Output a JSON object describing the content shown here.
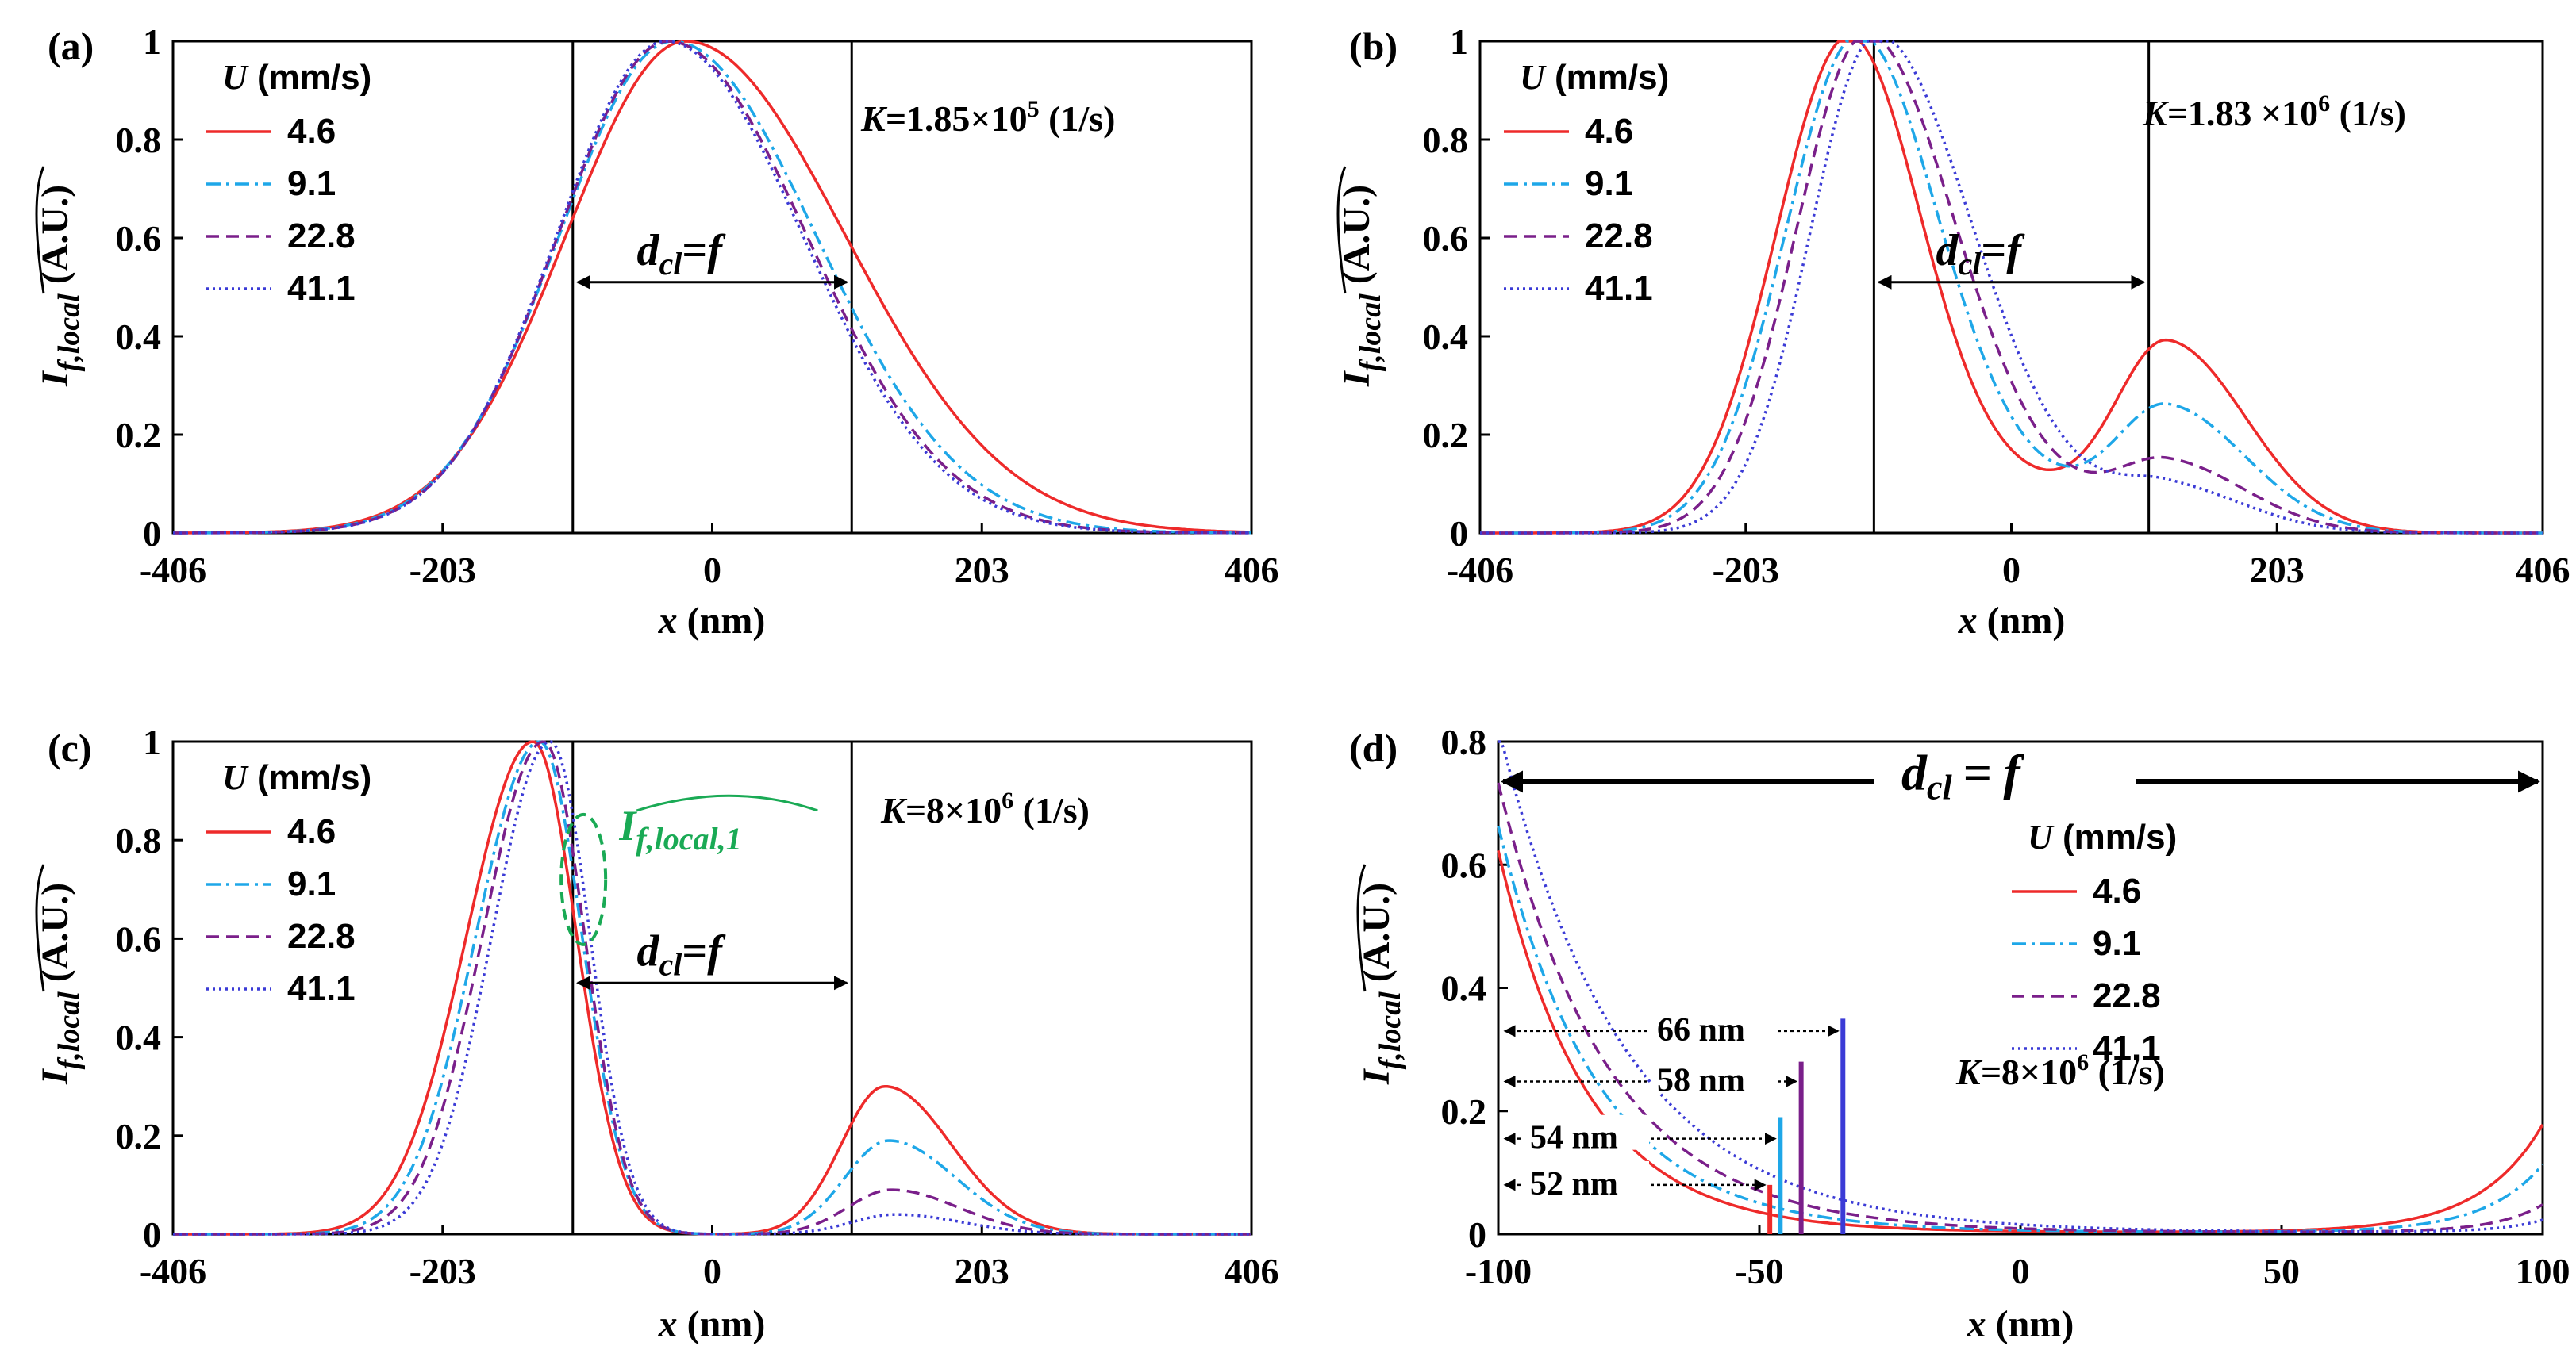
{
  "figure": {
    "legend_title": "U",
    "legend_unit": "(mm/s)",
    "ylabel_base": "I",
    "ylabel_sub": "f,local",
    "ylabel_unit": "(A.U.)",
    "xlabel_var": "x",
    "xlabel_unit": "(nm)",
    "dim_label_d": "d",
    "dim_label_cl": "cl",
    "dim_label_eq": "=",
    "dim_label_f": "f",
    "k_label_prefix": "K="
  },
  "series_styles": [
    {
      "name": "4.6",
      "color": "#ee2a2a",
      "dash": ""
    },
    {
      "name": "9.1",
      "color": "#1ea7e8",
      "dash": "dashdot"
    },
    {
      "name": "22.8",
      "color": "#7a1f8a",
      "dash": "dash"
    },
    {
      "name": "41.1",
      "color": "#3b3bd6",
      "dash": "dot"
    }
  ],
  "chart_data": [
    {
      "panel": "(a)",
      "type": "line",
      "k_value": "1.85×10",
      "k_exp": "5",
      "k_unit": "(1/s)",
      "xlim": [
        -406,
        406
      ],
      "ylim": [
        0,
        1
      ],
      "xticks": [
        -406,
        -203,
        0,
        203,
        406
      ],
      "xtick_labels": [
        "-406",
        "-203",
        "0",
        "203",
        "406"
      ],
      "yticks": [
        0,
        0.2,
        0.4,
        0.6,
        0.8,
        1
      ],
      "ytick_labels": [
        "0",
        "0.2",
        "0.4",
        "0.6",
        "0.8",
        "1"
      ],
      "vlines": [
        -105,
        105
      ],
      "dim_arrow": {
        "x1": -105,
        "x2": 105,
        "y": 0.51
      },
      "series": [
        {
          "name": "4.6",
          "kind": "gauss",
          "params": [
            [
              1,
              -20,
              90,
              120
            ]
          ]
        },
        {
          "name": "9.1",
          "kind": "gauss",
          "params": [
            [
              1,
              -30,
              85,
              108
            ]
          ]
        },
        {
          "name": "22.8",
          "kind": "gauss",
          "params": [
            [
              1,
              -33,
              83,
              104
            ]
          ]
        },
        {
          "name": "41.1",
          "kind": "gauss",
          "params": [
            [
              1,
              -35,
              82,
              103
            ]
          ]
        }
      ]
    },
    {
      "panel": "(b)",
      "type": "line",
      "k_value": "1.83 ×10",
      "k_exp": "6",
      "k_unit": "(1/s)",
      "xlim": [
        -406,
        406
      ],
      "ylim": [
        0,
        1
      ],
      "xticks": [
        -406,
        -203,
        0,
        203,
        406
      ],
      "xtick_labels": [
        "-406",
        "-203",
        "0",
        "203",
        "406"
      ],
      "yticks": [
        0,
        0.2,
        0.4,
        0.6,
        0.8,
        1
      ],
      "ytick_labels": [
        "0",
        "0.2",
        "0.4",
        "0.6",
        "0.8",
        "1"
      ],
      "vlines": [
        -105,
        105
      ],
      "dim_arrow": {
        "x1": -105,
        "x2": 105,
        "y": 0.51
      },
      "series": [
        {
          "name": "4.6",
          "kind": "gauss",
          "params": [
            [
              1,
              -125,
              55,
              55
            ],
            [
              0.38,
              120,
              40,
              60
            ],
            [
              0.09,
              0,
              60,
              60
            ]
          ]
        },
        {
          "name": "9.1",
          "kind": "gauss",
          "params": [
            [
              1,
              -118,
              55,
              60
            ],
            [
              0.25,
              120,
              40,
              60
            ],
            [
              0.09,
              0,
              60,
              60
            ]
          ]
        },
        {
          "name": "22.8",
          "kind": "gauss",
          "params": [
            [
              1,
              -112,
              53,
              65
            ],
            [
              0.14,
              120,
              40,
              60
            ],
            [
              0.08,
              0,
              60,
              60
            ]
          ]
        },
        {
          "name": "41.1",
          "kind": "gauss",
          "params": [
            [
              1,
              -104,
              50,
              70
            ],
            [
              0.09,
              120,
              40,
              60
            ],
            [
              0.07,
              10,
              60,
              60
            ]
          ]
        }
      ]
    },
    {
      "panel": "(c)",
      "type": "line",
      "k_value": "8×10",
      "k_exp": "6",
      "k_unit": "(1/s)",
      "xlim": [
        -406,
        406
      ],
      "ylim": [
        0,
        1
      ],
      "xticks": [
        -406,
        -203,
        0,
        203,
        406
      ],
      "xtick_labels": [
        "-406",
        "-203",
        "0",
        "203",
        "406"
      ],
      "yticks": [
        0,
        0.2,
        0.4,
        0.6,
        0.8,
        1
      ],
      "ytick_labels": [
        "0",
        "0.2",
        "0.4",
        "0.6",
        "0.8",
        "1"
      ],
      "vlines": [
        -105,
        105
      ],
      "dim_arrow": {
        "x1": -105,
        "x2": 105,
        "y": 0.51
      },
      "annotation_main": "I",
      "annotation_sub": "f,local,1",
      "series": [
        {
          "name": "4.6",
          "kind": "gauss",
          "params": [
            [
              1,
              -135,
              50,
              33
            ],
            [
              0.3,
              130,
              33,
              50
            ]
          ]
        },
        {
          "name": "9.1",
          "kind": "gauss",
          "params": [
            [
              1,
              -130,
              48,
              32
            ],
            [
              0.19,
              133,
              33,
              50
            ]
          ]
        },
        {
          "name": "22.8",
          "kind": "gauss",
          "params": [
            [
              1,
              -127,
              46,
              31
            ],
            [
              0.09,
              135,
              33,
              50
            ]
          ]
        },
        {
          "name": "41.1",
          "kind": "gauss",
          "params": [
            [
              1,
              -122,
              44,
              30
            ],
            [
              0.04,
              138,
              33,
              50
            ]
          ]
        }
      ]
    },
    {
      "panel": "(d)",
      "type": "line",
      "k_value": "8×10",
      "k_exp": "6",
      "k_unit": "(1/s)",
      "xlim": [
        -100,
        100
      ],
      "ylim": [
        0,
        0.8
      ],
      "xticks": [
        -100,
        -50,
        0,
        50,
        100
      ],
      "xtick_labels": [
        "-100",
        "-50",
        "0",
        "50",
        "100"
      ],
      "yticks": [
        0,
        0.2,
        0.4,
        0.6,
        0.8
      ],
      "ytick_labels": [
        "0",
        "0.2",
        "0.4",
        "0.6",
        "0.8"
      ],
      "dim_arrow": {
        "x1": -100,
        "x2": 100,
        "y": 0.735
      },
      "series": [
        {
          "name": "4.6",
          "kind": "expo",
          "params": [
            0.62,
            17,
            0.175,
            12
          ]
        },
        {
          "name": "9.1",
          "kind": "expo",
          "params": [
            0.66,
            19,
            0.11,
            11
          ]
        },
        {
          "name": "22.8",
          "kind": "expo",
          "params": [
            0.73,
            21,
            0.045,
            9
          ]
        },
        {
          "name": "41.1",
          "kind": "expo",
          "params": [
            0.82,
            24,
            0.02,
            8
          ]
        }
      ],
      "markers": [
        {
          "series": "4.6",
          "x": -48,
          "y_top": 0.08,
          "arrow_y": 0.08,
          "label": "52 nm"
        },
        {
          "series": "9.1",
          "x": -46,
          "y_top": 0.19,
          "arrow_y": 0.155,
          "label": "54 nm"
        },
        {
          "series": "22.8",
          "x": -42,
          "y_top": 0.28,
          "arrow_y": 0.248,
          "label": "58 nm"
        },
        {
          "series": "41.1",
          "x": -34,
          "y_top": 0.35,
          "arrow_y": 0.33,
          "label": "66 nm"
        }
      ]
    }
  ]
}
